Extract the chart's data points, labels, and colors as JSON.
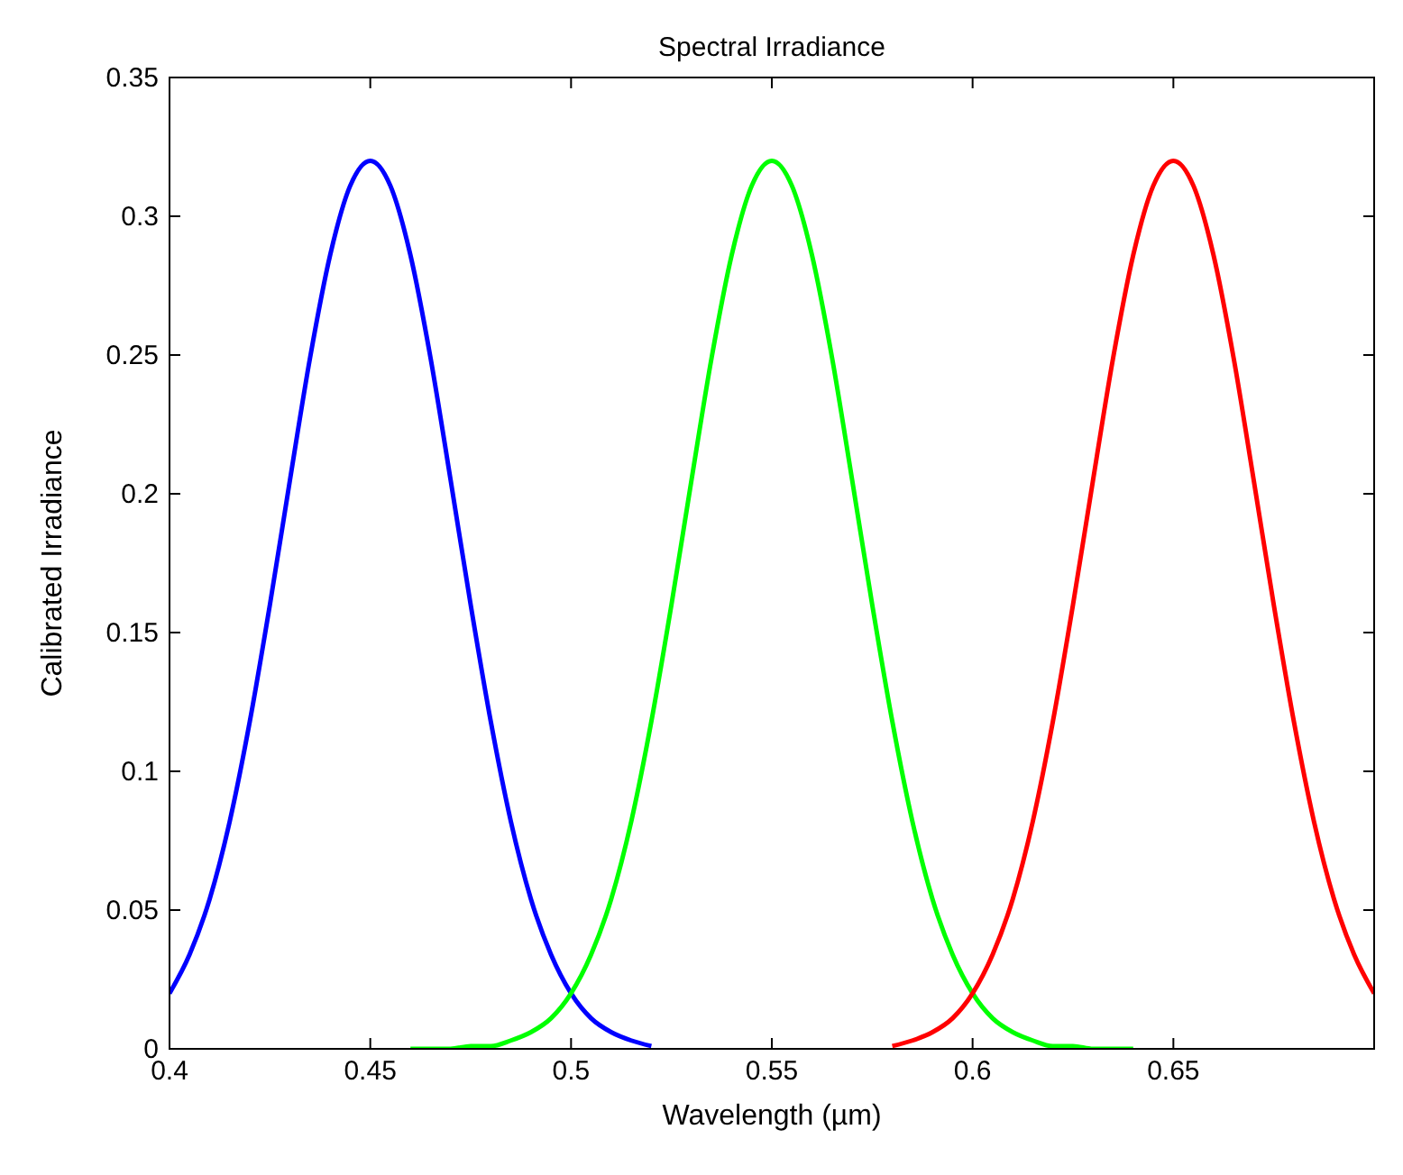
{
  "chart_data": {
    "type": "line",
    "title": "Spectral Irradiance",
    "xlabel": "Wavelength (µm)",
    "ylabel": "Calibrated Irradiance",
    "xlim": [
      0.4,
      0.7
    ],
    "xticks": [
      0.4,
      0.45,
      0.5,
      0.55,
      0.6,
      0.65
    ],
    "ylim": [
      0,
      0.35
    ],
    "yticks": [
      0,
      0.05,
      0.1,
      0.15,
      0.2,
      0.25,
      0.3,
      0.35
    ],
    "marker": "none",
    "line_style": "solid",
    "series": [
      {
        "color": "#0000ff",
        "x": [
          0.4,
          0.405,
          0.41,
          0.415,
          0.42,
          0.425,
          0.43,
          0.435,
          0.44,
          0.445,
          0.45,
          0.455,
          0.46,
          0.465,
          0.47,
          0.475,
          0.48,
          0.485,
          0.49,
          0.495,
          0.5,
          0.505,
          0.51,
          0.515,
          0.52
        ],
        "values": [
          0.02,
          0.034,
          0.054,
          0.082,
          0.118,
          0.16,
          0.205,
          0.249,
          0.286,
          0.311,
          0.32,
          0.311,
          0.286,
          0.249,
          0.205,
          0.16,
          0.118,
          0.082,
          0.054,
          0.034,
          0.02,
          0.011,
          0.006,
          0.003,
          0.001
        ]
      },
      {
        "color": "#00ff00",
        "x": [
          0.46,
          0.465,
          0.47,
          0.475,
          0.48,
          0.485,
          0.49,
          0.495,
          0.5,
          0.505,
          0.51,
          0.515,
          0.52,
          0.525,
          0.53,
          0.535,
          0.54,
          0.545,
          0.55,
          0.555,
          0.56,
          0.565,
          0.57,
          0.575,
          0.58,
          0.585,
          0.59,
          0.595,
          0.6,
          0.605,
          0.61,
          0.615,
          0.62,
          0.625,
          0.63,
          0.635,
          0.64
        ],
        "values": [
          0,
          0,
          0,
          0.001,
          0.001,
          0.003,
          0.006,
          0.011,
          0.02,
          0.034,
          0.054,
          0.082,
          0.118,
          0.16,
          0.205,
          0.249,
          0.286,
          0.311,
          0.32,
          0.311,
          0.286,
          0.249,
          0.205,
          0.16,
          0.118,
          0.082,
          0.054,
          0.034,
          0.02,
          0.011,
          0.006,
          0.003,
          0.001,
          0.001,
          0,
          0,
          0
        ]
      },
      {
        "color": "#ff0000",
        "x": [
          0.58,
          0.585,
          0.59,
          0.595,
          0.6,
          0.605,
          0.61,
          0.615,
          0.62,
          0.625,
          0.63,
          0.635,
          0.64,
          0.645,
          0.65,
          0.655,
          0.66,
          0.665,
          0.67,
          0.675,
          0.68,
          0.685,
          0.69,
          0.695,
          0.7
        ],
        "values": [
          0.001,
          0.003,
          0.006,
          0.011,
          0.02,
          0.034,
          0.054,
          0.082,
          0.118,
          0.16,
          0.205,
          0.249,
          0.286,
          0.311,
          0.32,
          0.311,
          0.286,
          0.249,
          0.205,
          0.16,
          0.118,
          0.082,
          0.054,
          0.034,
          0.02
        ]
      }
    ]
  }
}
